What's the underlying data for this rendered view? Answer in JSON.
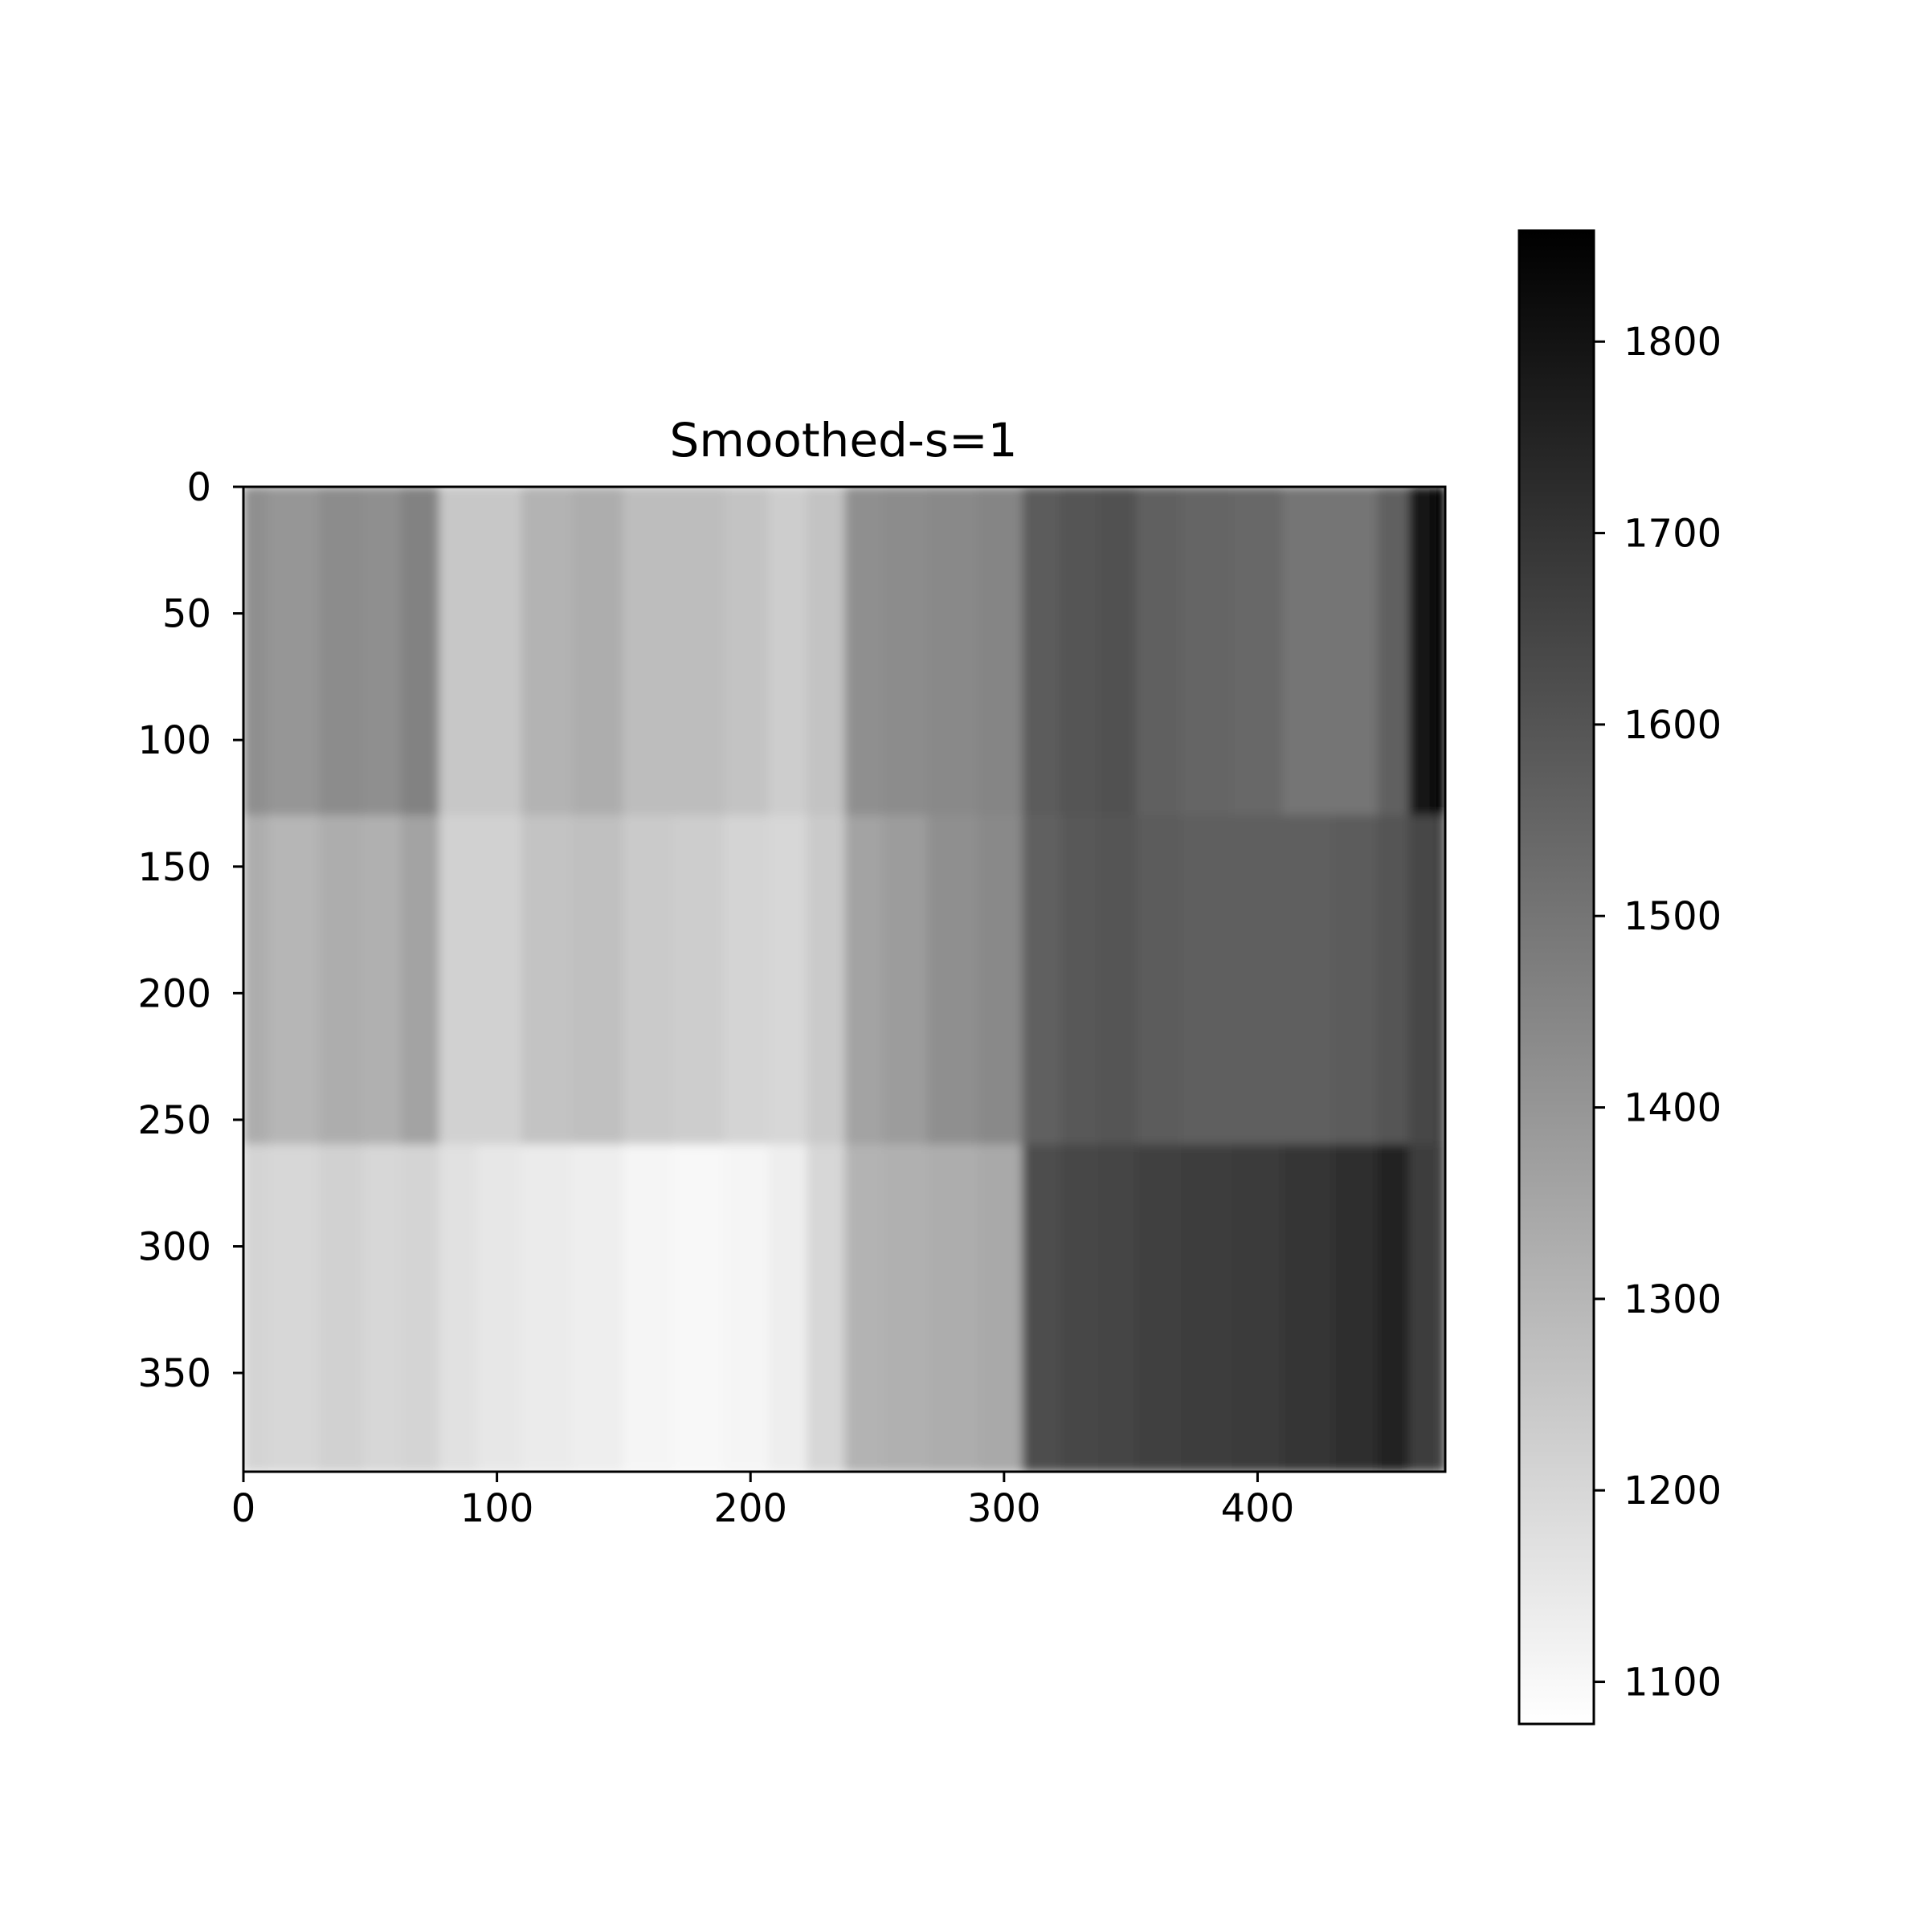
{
  "chart_data": {
    "type": "heatmap",
    "title": "Smoothed-s=1",
    "xlabel": "",
    "ylabel": "",
    "colormap": "Greys",
    "x_range": [
      0,
      474
    ],
    "y_range": [
      389,
      0
    ],
    "x_ticks": [
      0,
      100,
      200,
      300,
      400
    ],
    "y_ticks": [
      0,
      50,
      100,
      150,
      200,
      250,
      300,
      350
    ],
    "colorbar": {
      "range": [
        1078,
        1858
      ],
      "ticks": [
        1100,
        1200,
        1300,
        1400,
        1500,
        1600,
        1700,
        1800
      ]
    },
    "column_profile": {
      "x": [
        0,
        20,
        40,
        55,
        70,
        85,
        100,
        120,
        140,
        160,
        180,
        200,
        215,
        230,
        245,
        260,
        280,
        300,
        315,
        330,
        345,
        360,
        380,
        400,
        420,
        440,
        455,
        465,
        474
      ],
      "top": [
        1420,
        1400,
        1430,
        1420,
        1460,
        1250,
        1250,
        1310,
        1330,
        1280,
        1280,
        1260,
        1230,
        1260,
        1420,
        1430,
        1440,
        1450,
        1580,
        1600,
        1610,
        1560,
        1550,
        1540,
        1500,
        1500,
        1560,
        1800,
        1840
      ],
      "middle": [
        1330,
        1300,
        1330,
        1320,
        1360,
        1220,
        1220,
        1260,
        1270,
        1240,
        1230,
        1210,
        1200,
        1240,
        1360,
        1380,
        1420,
        1440,
        1560,
        1590,
        1600,
        1580,
        1570,
        1570,
        1570,
        1580,
        1600,
        1640,
        1650
      ],
      "bottom": [
        1210,
        1200,
        1220,
        1200,
        1210,
        1170,
        1150,
        1140,
        1130,
        1110,
        1100,
        1110,
        1130,
        1200,
        1310,
        1320,
        1330,
        1340,
        1620,
        1640,
        1650,
        1660,
        1670,
        1680,
        1700,
        1720,
        1750,
        1670,
        1660
      ]
    }
  }
}
